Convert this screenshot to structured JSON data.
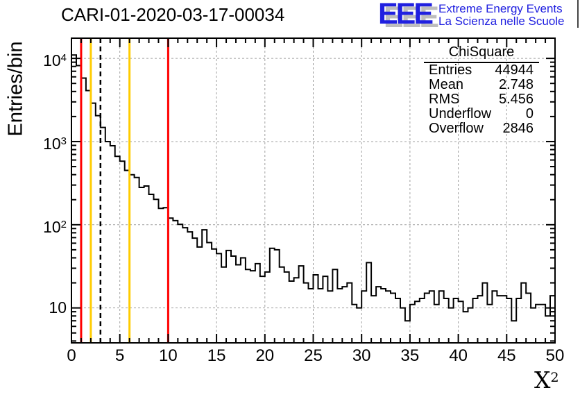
{
  "page": {
    "background": "#ffffff"
  },
  "logo": {
    "letters": "EEE",
    "line1": "Extreme Energy Events",
    "line2": "La Scienza nelle Scuole",
    "color": "#2020e0",
    "shadow_color": "#bdbdbd"
  },
  "stats_box": {
    "title": "ChiSquare",
    "rows": [
      {
        "label": "Entries",
        "value": "44944"
      },
      {
        "label": "Mean",
        "value": "2.748"
      },
      {
        "label": "RMS",
        "value": "5.456"
      },
      {
        "label": "Underflow",
        "value": "0"
      },
      {
        "label": "Overflow",
        "value": "2846"
      }
    ]
  },
  "chart_data": {
    "type": "bar",
    "style": "step-histogram-outline",
    "title": "CARI-01-2020-03-17-00034",
    "xlabel_base": "X",
    "xlabel_sup": "2",
    "ylabel": "Entries/bin",
    "yscale": "log",
    "xlim": [
      0,
      50
    ],
    "ylim": [
      3.8,
      17500
    ],
    "grid": true,
    "legend": "none",
    "bin_start": 0,
    "bin_width": 0.5,
    "counts": [
      11000,
      8200,
      5800,
      4100,
      2900,
      2050,
      1480,
      1000,
      890,
      665,
      580,
      450,
      400,
      370,
      281,
      292,
      232,
      202,
      157,
      160,
      120,
      112,
      101,
      92,
      82,
      69,
      54,
      87,
      61,
      51,
      45,
      31,
      49,
      42,
      33,
      40,
      29,
      28,
      34,
      24,
      27,
      52,
      50,
      31,
      27,
      21,
      23,
      32,
      20,
      17,
      25,
      17,
      24,
      16,
      29,
      17,
      18,
      20,
      11,
      10,
      16,
      35,
      14,
      18,
      17,
      16,
      15,
      13,
      10,
      7,
      11,
      12,
      13,
      15,
      16,
      11,
      16,
      13,
      10,
      13,
      12,
      9,
      10,
      13,
      14,
      20,
      11,
      16,
      14,
      14,
      13,
      7,
      13,
      20,
      15,
      10,
      11,
      11,
      8,
      14
    ],
    "x_major_ticks": [
      0,
      5,
      10,
      15,
      20,
      25,
      30,
      35,
      40,
      45,
      50
    ],
    "x_minor_step": 1,
    "y_decades": [
      1,
      2,
      3,
      4
    ],
    "marker_lines": [
      {
        "x": 1,
        "color": "#ff0000",
        "style": "solid",
        "name": "red-cut-low-line"
      },
      {
        "x": 2,
        "color": "#ffcc00",
        "style": "solid",
        "name": "yellow-cut-low-line"
      },
      {
        "x": 3,
        "color": "#000000",
        "style": "dashed",
        "name": "dashed-cut-line"
      },
      {
        "x": 6,
        "color": "#ffcc00",
        "style": "solid",
        "name": "yellow-cut-high-line"
      },
      {
        "x": 10,
        "color": "#ff0000",
        "style": "solid",
        "name": "red-cut-high-line"
      }
    ],
    "colors": {
      "line": "#000000",
      "grid": "#a0a0a0",
      "frame": "#000000"
    }
  }
}
